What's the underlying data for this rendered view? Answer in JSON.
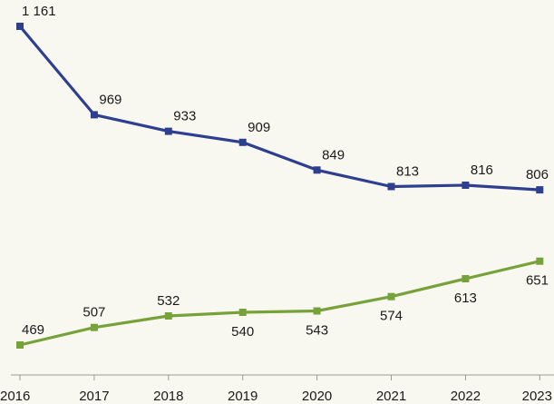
{
  "chart_data": {
    "type": "line",
    "x": [
      "2016",
      "2017",
      "2018",
      "2019",
      "2020",
      "2021",
      "2022",
      "2023"
    ],
    "series": [
      {
        "values": [
          1161,
          969,
          933,
          909,
          849,
          813,
          816,
          806
        ],
        "labels": [
          "1 161",
          "969",
          "933",
          "909",
          "849",
          "813",
          "816",
          "806"
        ],
        "color": "#2f3f8f",
        "label_position": "above"
      },
      {
        "values": [
          469,
          507,
          532,
          540,
          543,
          574,
          613,
          651
        ],
        "labels": [
          "469",
          "507",
          "532",
          "540",
          "543",
          "574",
          "613",
          "651"
        ],
        "color": "#77a23a",
        "label_position": [
          "above",
          "above",
          "above",
          "below",
          "below",
          "below",
          "below",
          "below"
        ]
      }
    ],
    "ylim": [
      400,
      1200
    ],
    "grid": false,
    "axis_color": "#9a9a9a"
  }
}
